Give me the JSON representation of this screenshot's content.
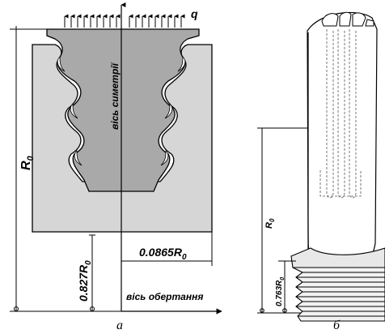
{
  "figure_a": {
    "load_label": "q",
    "symmetry_axis_label": "вісь симетрії",
    "R0_label": "R",
    "R0_sub": "0",
    "dim_0827_label": "0.827R",
    "dim_0827_sub": "0",
    "dim_00865_label": "0.0865R",
    "dim_00865_sub": "0",
    "rotation_axis_label": "вісь обертання",
    "caption": "а"
  },
  "figure_b": {
    "R0_label": "R",
    "R0_sub": "0",
    "dim_0763_label": "0.763R",
    "dim_0763_sub": "0",
    "caption": "б"
  },
  "colors": {
    "disk_fill": "#d6d6d6",
    "root_fill": "#a9a9a9",
    "line": "#000000"
  }
}
